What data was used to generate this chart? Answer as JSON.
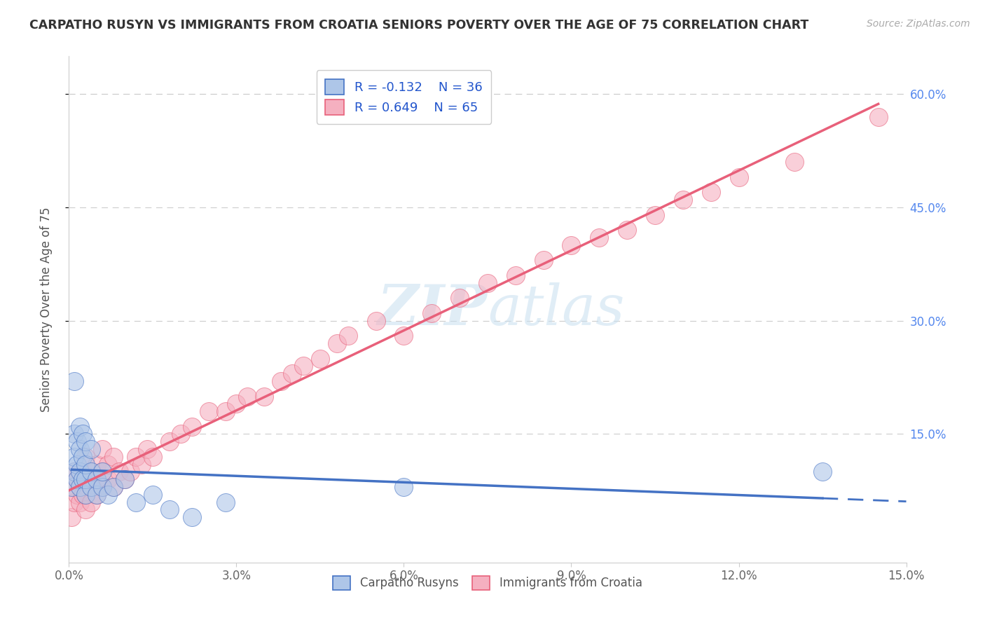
{
  "title": "CARPATHO RUSYN VS IMMIGRANTS FROM CROATIA SENIORS POVERTY OVER THE AGE OF 75 CORRELATION CHART",
  "source": "Source: ZipAtlas.com",
  "ylabel": "Seniors Poverty Over the Age of 75",
  "xlim": [
    0.0,
    0.15
  ],
  "ylim": [
    -0.02,
    0.65
  ],
  "xticks": [
    0.0,
    0.03,
    0.06,
    0.09,
    0.12,
    0.15
  ],
  "xtick_labels": [
    "0.0%",
    "3.0%",
    "6.0%",
    "9.0%",
    "12.0%",
    "15.0%"
  ],
  "yticks": [
    0.15,
    0.3,
    0.45,
    0.6
  ],
  "ytick_labels": [
    "15.0%",
    "30.0%",
    "45.0%",
    "60.0%"
  ],
  "blue_R": -0.132,
  "blue_N": 36,
  "pink_R": 0.649,
  "pink_N": 65,
  "blue_color": "#aec6e8",
  "pink_color": "#f5b0c0",
  "blue_line_color": "#4472c4",
  "pink_line_color": "#e8607a",
  "legend_R_color": "#2255cc",
  "watermark_zip": "ZIP",
  "watermark_atlas": "atlas",
  "background_color": "#ffffff",
  "grid_color": "#cccccc",
  "blue_scatter_x": [
    0.0005,
    0.001,
    0.001,
    0.001,
    0.001,
    0.0015,
    0.0015,
    0.0015,
    0.002,
    0.002,
    0.002,
    0.002,
    0.0025,
    0.0025,
    0.0025,
    0.003,
    0.003,
    0.003,
    0.003,
    0.004,
    0.004,
    0.004,
    0.005,
    0.005,
    0.006,
    0.006,
    0.007,
    0.008,
    0.01,
    0.012,
    0.015,
    0.018,
    0.022,
    0.028,
    0.06,
    0.135
  ],
  "blue_scatter_y": [
    0.08,
    0.1,
    0.12,
    0.15,
    0.22,
    0.09,
    0.11,
    0.14,
    0.08,
    0.1,
    0.13,
    0.16,
    0.09,
    0.12,
    0.15,
    0.07,
    0.09,
    0.11,
    0.14,
    0.08,
    0.1,
    0.13,
    0.07,
    0.09,
    0.08,
    0.1,
    0.07,
    0.08,
    0.09,
    0.06,
    0.07,
    0.05,
    0.04,
    0.06,
    0.08,
    0.1
  ],
  "pink_scatter_x": [
    0.0005,
    0.001,
    0.001,
    0.001,
    0.0015,
    0.0015,
    0.002,
    0.002,
    0.002,
    0.0025,
    0.0025,
    0.003,
    0.003,
    0.003,
    0.003,
    0.004,
    0.004,
    0.004,
    0.005,
    0.005,
    0.005,
    0.006,
    0.006,
    0.006,
    0.007,
    0.007,
    0.008,
    0.008,
    0.009,
    0.01,
    0.011,
    0.012,
    0.013,
    0.014,
    0.015,
    0.018,
    0.02,
    0.022,
    0.025,
    0.028,
    0.03,
    0.032,
    0.035,
    0.038,
    0.04,
    0.042,
    0.045,
    0.048,
    0.05,
    0.055,
    0.06,
    0.065,
    0.07,
    0.075,
    0.08,
    0.085,
    0.09,
    0.095,
    0.1,
    0.105,
    0.11,
    0.115,
    0.12,
    0.13,
    0.145
  ],
  "pink_scatter_y": [
    0.04,
    0.06,
    0.08,
    0.1,
    0.07,
    0.09,
    0.06,
    0.08,
    0.1,
    0.07,
    0.09,
    0.05,
    0.07,
    0.09,
    0.12,
    0.06,
    0.08,
    0.1,
    0.07,
    0.09,
    0.11,
    0.08,
    0.1,
    0.13,
    0.09,
    0.11,
    0.08,
    0.12,
    0.1,
    0.09,
    0.1,
    0.12,
    0.11,
    0.13,
    0.12,
    0.14,
    0.15,
    0.16,
    0.18,
    0.18,
    0.19,
    0.2,
    0.2,
    0.22,
    0.23,
    0.24,
    0.25,
    0.27,
    0.28,
    0.3,
    0.28,
    0.31,
    0.33,
    0.35,
    0.36,
    0.38,
    0.4,
    0.41,
    0.42,
    0.44,
    0.46,
    0.47,
    0.49,
    0.51,
    0.57
  ]
}
